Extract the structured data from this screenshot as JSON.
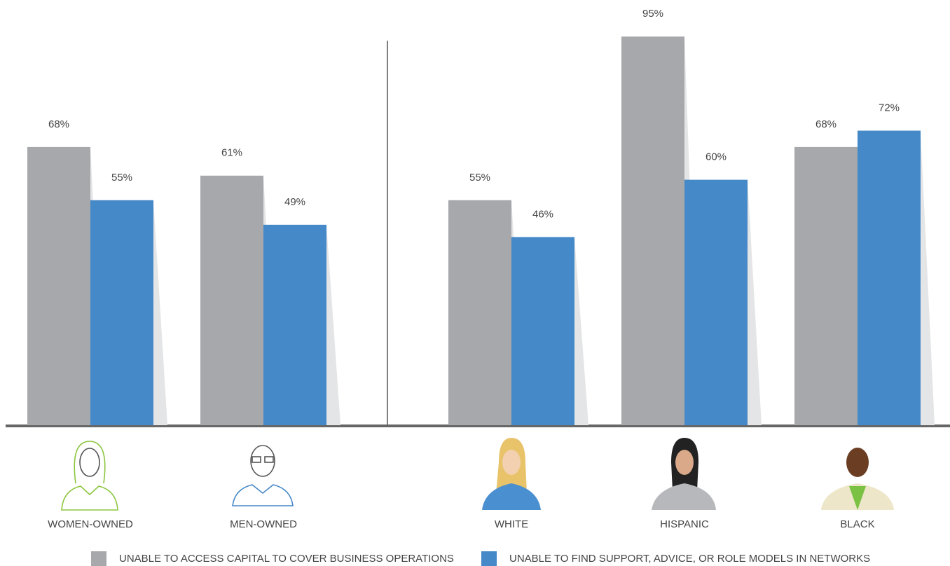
{
  "chart_data": {
    "type": "bar",
    "categories": [
      "WOMEN-OWNED",
      "MEN-OWNED",
      "WHITE",
      "HISPANIC",
      "BLACK"
    ],
    "series": [
      {
        "name": "UNABLE TO ACCESS CAPITAL TO COVER BUSINESS OPERATIONS",
        "color": "#a7a8ab",
        "values": [
          68,
          61,
          55,
          95,
          68
        ],
        "value_labels": [
          "68%",
          "61%",
          "55%",
          "95%",
          "68%"
        ]
      },
      {
        "name": "UNABLE TO FIND SUPPORT, ADVICE, OR ROLE MODELS IN NETWORKS",
        "color": "#4589c8",
        "values": [
          55,
          49,
          46,
          60,
          72
        ],
        "value_labels": [
          "55%",
          "49%",
          "46%",
          "60%",
          "72%"
        ]
      }
    ],
    "ylim": [
      0,
      100
    ],
    "legend": "bottom"
  }
}
